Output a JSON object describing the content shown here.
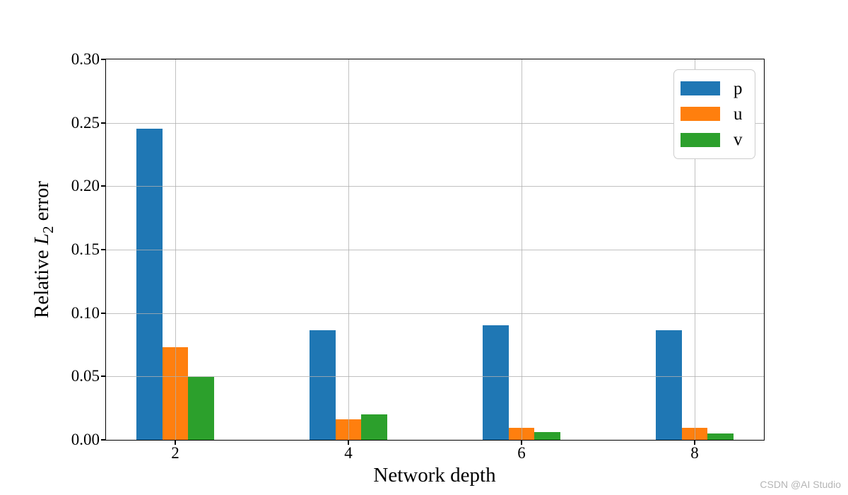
{
  "watermark": "CSDN @AI Studio",
  "chart_data": {
    "type": "bar",
    "title": "",
    "xlabel": "Network depth",
    "ylabel": "Relative L2 error",
    "ylabel_parts": {
      "prefix": "Relative ",
      "math": "L",
      "sub": "2",
      "suffix": " error"
    },
    "categories": [
      2,
      4,
      6,
      8
    ],
    "series": [
      {
        "name": "p",
        "color": "#1f77b4",
        "values": [
          0.2455,
          0.0865,
          0.0905,
          0.0865
        ]
      },
      {
        "name": "u",
        "color": "#ff7f0e",
        "values": [
          0.073,
          0.016,
          0.0095,
          0.0095
        ]
      },
      {
        "name": "v",
        "color": "#2ca02c",
        "values": [
          0.0495,
          0.02,
          0.006,
          0.005
        ]
      }
    ],
    "bar_width": 0.3,
    "xlim": [
      1.2,
      8.8
    ],
    "ylim": [
      0,
      0.3
    ],
    "xticks": [
      "2",
      "4",
      "6",
      "8"
    ],
    "yticks": [
      "0.00",
      "0.05",
      "0.10",
      "0.15",
      "0.20",
      "0.25",
      "0.30"
    ],
    "ytick_values": [
      0,
      0.05,
      0.1,
      0.15,
      0.2,
      0.25,
      0.3
    ],
    "grid": true,
    "legend_position": "upper right",
    "legend": [
      "p",
      "u",
      "v"
    ],
    "grid_color": "#b0b0b0",
    "spine_color": "#000000"
  }
}
